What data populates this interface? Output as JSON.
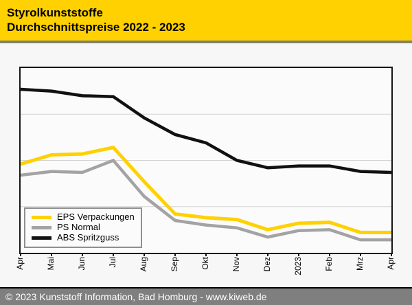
{
  "header": {
    "title_line1": "Styrolkunststoffe",
    "title_line2": "Durchschnittspreise 2022 - 2023"
  },
  "footer": {
    "text": "© 2023 Kunststoff Information, Bad Homburg - www.kiweb.de"
  },
  "colors": {
    "header_bg": "#FFD100",
    "header_text": "#000000",
    "footer_bg": "#7F7F7F",
    "footer_text": "#FFFFFF",
    "page_bg": "#F7F7F7",
    "plot_bg": "#FBFBFB",
    "plot_border": "#161616",
    "gridline": "#D3D3D3",
    "legend_border": "#8F8F8F",
    "series_eps_yellow": "#FFD100",
    "series_ps_gray": "#A3A3A3",
    "series_abs_black": "#111111"
  },
  "chart_data": {
    "type": "line",
    "title": "Styrolkunststoffe Durchschnittspreise 2022 - 2023",
    "xlabel": "",
    "ylabel": "",
    "x_tick_labels": [
      "Apr",
      "Mai",
      "Jun",
      "Jul",
      "Aug",
      "Sep",
      "Okt",
      "Nov",
      "Dez",
      "2023",
      "Feb",
      "Mrz",
      "Apr"
    ],
    "y_axis_note": "no y-axis tick labels visible in chart; series values estimated as percent of plot height (0 = bottom axis, 100 = top border)",
    "ylim": [
      0,
      100
    ],
    "gridlines_y": [
      25,
      50,
      75
    ],
    "grid": "horizontal-only",
    "legend_position": "inside-bottom-left",
    "series": [
      {
        "name": "EPS Verpackungen",
        "color": "#FFD100",
        "stroke_width": 5,
        "values": [
          48,
          53,
          53.5,
          57,
          38.5,
          21,
          19,
          18,
          12.5,
          16,
          16.5,
          11,
          11
        ]
      },
      {
        "name": "PS Normal",
        "color": "#A3A3A3",
        "stroke_width": 4.5,
        "values": [
          42,
          44,
          43.5,
          50,
          30.5,
          17.5,
          15,
          13.5,
          8.5,
          12,
          12.5,
          7,
          7
        ]
      },
      {
        "name": "ABS Spritzguss",
        "color": "#111111",
        "stroke_width": 4.5,
        "values": [
          88.5,
          87.5,
          85,
          84.5,
          73,
          64,
          59.5,
          50,
          46,
          47,
          47,
          44,
          43.5
        ]
      }
    ]
  }
}
